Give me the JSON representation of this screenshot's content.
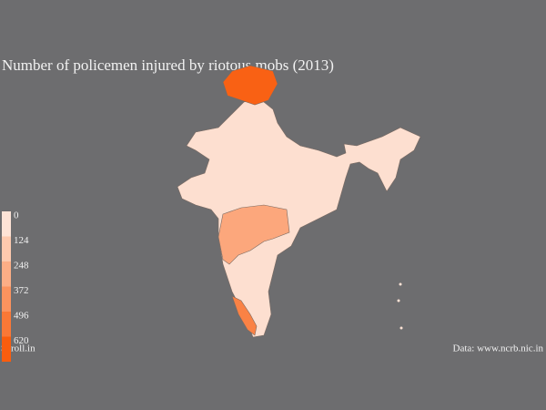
{
  "title": "Number of policemen injured by riotous mobs (2013)",
  "legend": {
    "ticks": [
      0,
      124,
      248,
      372,
      496,
      620
    ],
    "colors": [
      "#fde3d6",
      "#fdc9ae",
      "#fcae86",
      "#fb935e",
      "#fa7836",
      "#f95d0e"
    ]
  },
  "regions": {
    "values": [
      600,
      280,
      450,
      20
    ]
  },
  "source_left": "Scroll.in",
  "source_right": "Data: www.ncrb.nic.in"
}
